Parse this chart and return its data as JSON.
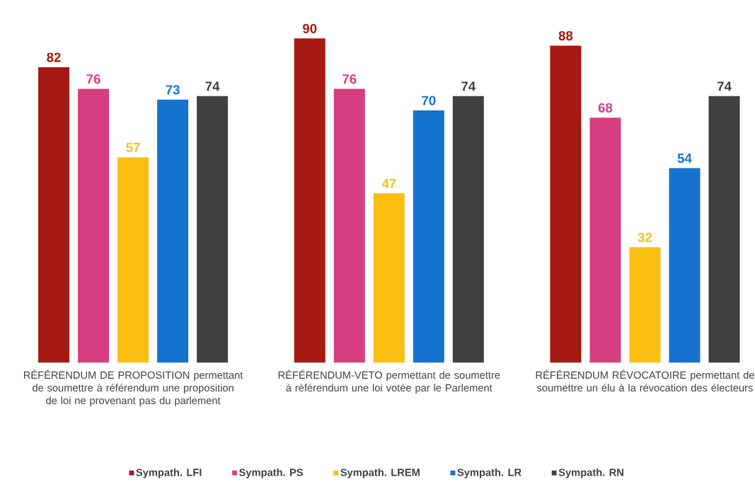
{
  "chart_data": {
    "type": "bar",
    "categories": [
      "RÉFÉRENDUM DE PROPOSITION permettant de soumettre à référendum une proposition de loi ne provenant pas du parlement",
      "RÉFÉRENDUM-VETO permettant de soumettre à référendum une loi votée par le Parlement",
      "RÉFÉRENDUM RÉVOCATOIRE permettant de soumettre un élu à la révocation des électeurs"
    ],
    "series": [
      {
        "name": "Sympath. LFI",
        "color": "#a51a12",
        "values": [
          82,
          90,
          88
        ]
      },
      {
        "name": "Sympath. PS",
        "color": "#d63e80",
        "values": [
          76,
          76,
          68
        ]
      },
      {
        "name": "Sympath. LREM",
        "color": "#fbbf13",
        "values": [
          57,
          47,
          32
        ]
      },
      {
        "name": "Sympath. LR",
        "color": "#1672cf",
        "values": [
          73,
          70,
          54
        ]
      },
      {
        "name": "Sympath. RN",
        "color": "#404040",
        "values": [
          74,
          74,
          74
        ]
      }
    ],
    "data_labels": true,
    "legend": "bottom"
  }
}
